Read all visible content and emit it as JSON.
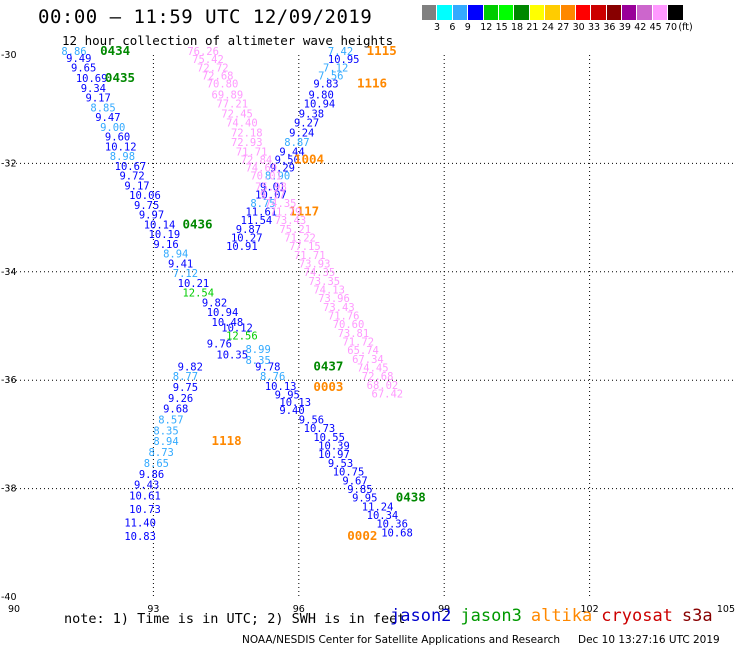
{
  "header": {
    "title": "00:00 – 11:59 UTC 12/09/2019",
    "subtitle": "12 hour collection of altimeter wave heights"
  },
  "colorbar": {
    "colors": [
      "#808080",
      "#00ffff",
      "#33aaff",
      "#0000ff",
      "#00cc00",
      "#00ff00",
      "#008800",
      "#ffff00",
      "#ffcc00",
      "#ff8800",
      "#ff0000",
      "#cc0000",
      "#880000",
      "#990099",
      "#cc66cc",
      "#ff99ff",
      "#000000"
    ],
    "ticks": [
      "3",
      "6",
      "9",
      "12",
      "15",
      "18",
      "21",
      "24",
      "27",
      "30",
      "33",
      "36",
      "39",
      "42",
      "45",
      "70",
      "(ft)"
    ]
  },
  "footer": {
    "note": "note: 1) Time is in UTC; 2) SWH is in feet",
    "legend": [
      {
        "name": "jason2",
        "color": "#0000cc"
      },
      {
        "name": "jason3",
        "color": "#009900"
      },
      {
        "name": "altika",
        "color": "#ff8800"
      },
      {
        "name": "cryosat",
        "color": "#cc0000"
      },
      {
        "name": "s3a",
        "color": "#880000"
      }
    ],
    "credit": "NOAA/NESDIS Center for Satellite Applications and Research",
    "stamp": "Dec 10 13:27:16 UTC 2019"
  },
  "chart_data": {
    "type": "scatter",
    "title": "00:00 – 11:59 UTC 12/09/2019",
    "subtitle": "12 hour collection of altimeter wave heights",
    "x_ticks": [
      "90",
      "93",
      "96",
      "99",
      "102",
      "105"
    ],
    "y_ticks": [
      "-30",
      "-32",
      "-34",
      "-36",
      "-38",
      "-40"
    ],
    "xlim": [
      90,
      105
    ],
    "ylim": [
      -40,
      -30
    ],
    "grid": true,
    "units": "ft",
    "labels": [
      {
        "x": 91.1,
        "y": -30.0,
        "text": "8.86",
        "color": "#33aaff"
      },
      {
        "x": 91.9,
        "y": -30.0,
        "text": "0434",
        "color": "#008800",
        "bold": true
      },
      {
        "x": 91.2,
        "y": -30.13,
        "text": "9.49",
        "color": "#0000ff"
      },
      {
        "x": 91.3,
        "y": -30.3,
        "text": "9.65",
        "color": "#0000ff"
      },
      {
        "x": 91.4,
        "y": -30.5,
        "text": "10.69",
        "color": "#0000ff"
      },
      {
        "x": 92.0,
        "y": -30.5,
        "text": "0435",
        "color": "#008800",
        "bold": true
      },
      {
        "x": 91.5,
        "y": -30.68,
        "text": "9.34",
        "color": "#0000ff"
      },
      {
        "x": 91.6,
        "y": -30.86,
        "text": "9.17",
        "color": "#0000ff"
      },
      {
        "x": 91.7,
        "y": -31.04,
        "text": "8.85",
        "color": "#33aaff"
      },
      {
        "x": 91.8,
        "y": -31.22,
        "text": "9.47",
        "color": "#0000ff"
      },
      {
        "x": 91.9,
        "y": -31.4,
        "text": "9.00",
        "color": "#33aaff"
      },
      {
        "x": 92.0,
        "y": -31.58,
        "text": "9.60",
        "color": "#0000ff"
      },
      {
        "x": 92.0,
        "y": -31.76,
        "text": "10.12",
        "color": "#0000ff"
      },
      {
        "x": 92.1,
        "y": -31.94,
        "text": "8.98",
        "color": "#33aaff"
      },
      {
        "x": 92.2,
        "y": -32.12,
        "text": "10.67",
        "color": "#0000ff"
      },
      {
        "x": 92.3,
        "y": -32.3,
        "text": "9.72",
        "color": "#0000ff"
      },
      {
        "x": 92.4,
        "y": -32.48,
        "text": "9.17",
        "color": "#0000ff"
      },
      {
        "x": 92.5,
        "y": -32.66,
        "text": "10.06",
        "color": "#0000ff"
      },
      {
        "x": 92.6,
        "y": -32.84,
        "text": "9.75",
        "color": "#0000ff"
      },
      {
        "x": 92.7,
        "y": -33.02,
        "text": "9.97",
        "color": "#0000ff"
      },
      {
        "x": 92.8,
        "y": -33.2,
        "text": "10.14",
        "color": "#0000ff"
      },
      {
        "x": 93.6,
        "y": -33.2,
        "text": "0436",
        "color": "#008800",
        "bold": true
      },
      {
        "x": 92.9,
        "y": -33.38,
        "text": "10.19",
        "color": "#0000ff"
      },
      {
        "x": 93.0,
        "y": -33.56,
        "text": "9.16",
        "color": "#0000ff"
      },
      {
        "x": 93.2,
        "y": -33.74,
        "text": "8.94",
        "color": "#33aaff"
      },
      {
        "x": 93.3,
        "y": -33.92,
        "text": "9.41",
        "color": "#0000ff"
      },
      {
        "x": 93.4,
        "y": -34.1,
        "text": "7.12",
        "color": "#33aaff"
      },
      {
        "x": 93.5,
        "y": -34.28,
        "text": "10.21",
        "color": "#0000ff"
      },
      {
        "x": 93.6,
        "y": -34.46,
        "text": "12.54",
        "color": "#00cc00"
      },
      {
        "x": 94.0,
        "y": -34.64,
        "text": "9.82",
        "color": "#0000ff"
      },
      {
        "x": 94.1,
        "y": -34.82,
        "text": "10.94",
        "color": "#0000ff"
      },
      {
        "x": 94.2,
        "y": -35.0,
        "text": "10.48",
        "color": "#0000ff"
      },
      {
        "x": 94.4,
        "y": -35.1,
        "text": "10.12",
        "color": "#0000ff"
      },
      {
        "x": 94.5,
        "y": -35.25,
        "text": "12.56",
        "color": "#00cc00"
      },
      {
        "x": 94.1,
        "y": -35.4,
        "text": "9.76",
        "color": "#0000ff"
      },
      {
        "x": 94.9,
        "y": -35.5,
        "text": "8.99",
        "color": "#33aaff"
      },
      {
        "x": 94.3,
        "y": -35.6,
        "text": "10.35",
        "color": "#0000ff"
      },
      {
        "x": 94.9,
        "y": -35.7,
        "text": "8.35",
        "color": "#33aaff"
      },
      {
        "x": 93.5,
        "y": -35.82,
        "text": "9.82",
        "color": "#0000ff"
      },
      {
        "x": 95.1,
        "y": -35.82,
        "text": "9.78",
        "color": "#0000ff"
      },
      {
        "x": 96.3,
        "y": -35.82,
        "text": "0437",
        "color": "#008800",
        "bold": true
      },
      {
        "x": 93.4,
        "y": -36.0,
        "text": "8.77",
        "color": "#33aaff"
      },
      {
        "x": 95.2,
        "y": -36.0,
        "text": "8.76",
        "color": "#33aaff"
      },
      {
        "x": 95.3,
        "y": -36.18,
        "text": "10.13",
        "color": "#0000ff"
      },
      {
        "x": 93.4,
        "y": -36.2,
        "text": "9.75",
        "color": "#0000ff"
      },
      {
        "x": 96.3,
        "y": -36.2,
        "text": "0003",
        "color": "#ff8800",
        "bold": true
      },
      {
        "x": 95.5,
        "y": -36.34,
        "text": "9.95",
        "color": "#0000ff"
      },
      {
        "x": 93.3,
        "y": -36.4,
        "text": "9.26",
        "color": "#0000ff"
      },
      {
        "x": 95.6,
        "y": -36.48,
        "text": "10.13",
        "color": "#0000ff"
      },
      {
        "x": 93.2,
        "y": -36.6,
        "text": "9.68",
        "color": "#0000ff"
      },
      {
        "x": 95.6,
        "y": -36.62,
        "text": "9.40",
        "color": "#0000ff"
      },
      {
        "x": 93.1,
        "y": -36.8,
        "text": "8.57",
        "color": "#33aaff"
      },
      {
        "x": 96.0,
        "y": -36.8,
        "text": "9.56",
        "color": "#0000ff"
      },
      {
        "x": 96.1,
        "y": -36.96,
        "text": "10.73",
        "color": "#0000ff"
      },
      {
        "x": 93.0,
        "y": -37.0,
        "text": "8.35",
        "color": "#33aaff"
      },
      {
        "x": 96.3,
        "y": -37.12,
        "text": "10.55",
        "color": "#0000ff"
      },
      {
        "x": 93.0,
        "y": -37.2,
        "text": "8.94",
        "color": "#33aaff"
      },
      {
        "x": 94.2,
        "y": -37.2,
        "text": "1118",
        "color": "#ff8800",
        "bold": true
      },
      {
        "x": 96.4,
        "y": -37.28,
        "text": "10.39",
        "color": "#0000ff"
      },
      {
        "x": 92.9,
        "y": -37.4,
        "text": "8.73",
        "color": "#33aaff"
      },
      {
        "x": 96.4,
        "y": -37.44,
        "text": "10.97",
        "color": "#0000ff"
      },
      {
        "x": 96.6,
        "y": -37.6,
        "text": "9.53",
        "color": "#0000ff"
      },
      {
        "x": 92.8,
        "y": -37.6,
        "text": "8.65",
        "color": "#33aaff"
      },
      {
        "x": 96.7,
        "y": -37.76,
        "text": "10.75",
        "color": "#0000ff"
      },
      {
        "x": 92.7,
        "y": -37.8,
        "text": "9.86",
        "color": "#0000ff"
      },
      {
        "x": 96.9,
        "y": -37.92,
        "text": "9.67",
        "color": "#0000ff"
      },
      {
        "x": 92.6,
        "y": -38.0,
        "text": "9.43",
        "color": "#0000ff"
      },
      {
        "x": 97.0,
        "y": -38.08,
        "text": "9.85",
        "color": "#0000ff"
      },
      {
        "x": 92.5,
        "y": -38.2,
        "text": "10.61",
        "color": "#0000ff"
      },
      {
        "x": 97.1,
        "y": -38.24,
        "text": "9.95",
        "color": "#0000ff"
      },
      {
        "x": 98.0,
        "y": -38.24,
        "text": "0438",
        "color": "#008800",
        "bold": true
      },
      {
        "x": 97.3,
        "y": -38.4,
        "text": "11.24",
        "color": "#0000ff"
      },
      {
        "x": 92.5,
        "y": -38.45,
        "text": "10.73",
        "color": "#0000ff"
      },
      {
        "x": 97.4,
        "y": -38.56,
        "text": "10.34",
        "color": "#0000ff"
      },
      {
        "x": 92.4,
        "y": -38.7,
        "text": "11.40",
        "color": "#0000ff"
      },
      {
        "x": 97.6,
        "y": -38.72,
        "text": "10.36",
        "color": "#0000ff"
      },
      {
        "x": 97.7,
        "y": -38.88,
        "text": "10.68",
        "color": "#0000ff"
      },
      {
        "x": 92.4,
        "y": -38.95,
        "text": "10.83",
        "color": "#0000ff"
      },
      {
        "x": 97.0,
        "y": -38.95,
        "text": "0002",
        "color": "#ff8800",
        "bold": true
      },
      {
        "x": 96.6,
        "y": -30.0,
        "text": "7.42",
        "color": "#33aaff"
      },
      {
        "x": 97.4,
        "y": -30.0,
        "text": "1115",
        "color": "#ff8800",
        "bold": true
      },
      {
        "x": 96.6,
        "y": -30.15,
        "text": "10.95",
        "color": "#0000ff"
      },
      {
        "x": 96.5,
        "y": -30.3,
        "text": "7.12",
        "color": "#33aaff"
      },
      {
        "x": 96.4,
        "y": -30.45,
        "text": "7.56",
        "color": "#33aaff"
      },
      {
        "x": 96.3,
        "y": -30.6,
        "text": "9.83",
        "color": "#0000ff"
      },
      {
        "x": 97.2,
        "y": -30.6,
        "text": "1116",
        "color": "#ff8800",
        "bold": true
      },
      {
        "x": 96.2,
        "y": -30.8,
        "text": "9.80",
        "color": "#0000ff"
      },
      {
        "x": 96.1,
        "y": -30.97,
        "text": "10.94",
        "color": "#0000ff"
      },
      {
        "x": 96.0,
        "y": -31.15,
        "text": "9.38",
        "color": "#0000ff"
      },
      {
        "x": 95.9,
        "y": -31.32,
        "text": "9.27",
        "color": "#0000ff"
      },
      {
        "x": 95.8,
        "y": -31.5,
        "text": "9.24",
        "color": "#0000ff"
      },
      {
        "x": 95.7,
        "y": -31.68,
        "text": "8.87",
        "color": "#33aaff"
      },
      {
        "x": 95.6,
        "y": -31.85,
        "text": "9.44",
        "color": "#0000ff"
      },
      {
        "x": 95.5,
        "y": -32.0,
        "text": "9.50",
        "color": "#0000ff"
      },
      {
        "x": 95.9,
        "y": -32.0,
        "text": "1004",
        "color": "#ff8800",
        "bold": true
      },
      {
        "x": 95.4,
        "y": -32.15,
        "text": "9.29",
        "color": "#0000ff"
      },
      {
        "x": 95.3,
        "y": -32.3,
        "text": "8.90",
        "color": "#33aaff"
      },
      {
        "x": 95.2,
        "y": -32.5,
        "text": "9.01",
        "color": "#0000ff"
      },
      {
        "x": 95.1,
        "y": -32.65,
        "text": "10.07",
        "color": "#0000ff"
      },
      {
        "x": 95.0,
        "y": -32.8,
        "text": "8.75",
        "color": "#33aaff"
      },
      {
        "x": 94.9,
        "y": -32.96,
        "text": "11.61",
        "color": "#0000ff"
      },
      {
        "x": 95.8,
        "y": -32.96,
        "text": "1117",
        "color": "#ff8800",
        "bold": true
      },
      {
        "x": 94.8,
        "y": -33.12,
        "text": "11.54",
        "color": "#0000ff"
      },
      {
        "x": 94.7,
        "y": -33.28,
        "text": "9.87",
        "color": "#0000ff"
      },
      {
        "x": 94.6,
        "y": -33.44,
        "text": "10.27",
        "color": "#0000ff"
      },
      {
        "x": 94.5,
        "y": -33.6,
        "text": "10.91",
        "color": "#0000ff"
      },
      {
        "x": 93.7,
        "y": -30.0,
        "text": "76.26",
        "color": "#ff99ff"
      },
      {
        "x": 93.8,
        "y": -30.15,
        "text": "75.42",
        "color": "#ff99ff"
      },
      {
        "x": 93.9,
        "y": -30.3,
        "text": "72.72",
        "color": "#ff99ff"
      },
      {
        "x": 94.0,
        "y": -30.45,
        "text": "72.68",
        "color": "#ff99ff"
      },
      {
        "x": 94.1,
        "y": -30.6,
        "text": "70.80",
        "color": "#ff99ff"
      },
      {
        "x": 94.2,
        "y": -30.8,
        "text": "69.89",
        "color": "#ff99ff"
      },
      {
        "x": 94.3,
        "y": -30.97,
        "text": "77.21",
        "color": "#ff99ff"
      },
      {
        "x": 94.4,
        "y": -31.15,
        "text": "72.45",
        "color": "#ff99ff"
      },
      {
        "x": 94.5,
        "y": -31.32,
        "text": "74.40",
        "color": "#ff99ff"
      },
      {
        "x": 94.6,
        "y": -31.5,
        "text": "72.18",
        "color": "#ff99ff"
      },
      {
        "x": 94.6,
        "y": -31.68,
        "text": "72.93",
        "color": "#ff99ff"
      },
      {
        "x": 94.7,
        "y": -31.85,
        "text": "71.71",
        "color": "#ff99ff"
      },
      {
        "x": 94.8,
        "y": -32.0,
        "text": "72.84",
        "color": "#ff99ff"
      },
      {
        "x": 94.9,
        "y": -32.15,
        "text": "74.60",
        "color": "#ff99ff"
      },
      {
        "x": 95.0,
        "y": -32.3,
        "text": "70.01",
        "color": "#ff99ff"
      },
      {
        "x": 95.1,
        "y": -32.5,
        "text": "75.98",
        "color": "#ff99ff"
      },
      {
        "x": 95.2,
        "y": -32.65,
        "text": "9.17",
        "color": "#ff99ff"
      },
      {
        "x": 95.3,
        "y": -32.8,
        "text": "74.35",
        "color": "#ff99ff"
      },
      {
        "x": 95.4,
        "y": -32.96,
        "text": "71.79",
        "color": "#ff99ff"
      },
      {
        "x": 95.5,
        "y": -33.12,
        "text": "73.43",
        "color": "#ff99ff"
      },
      {
        "x": 95.6,
        "y": -33.28,
        "text": "75.21",
        "color": "#ff99ff"
      },
      {
        "x": 95.7,
        "y": -33.44,
        "text": "71.22",
        "color": "#ff99ff"
      },
      {
        "x": 95.8,
        "y": -33.6,
        "text": "77.15",
        "color": "#ff99ff"
      },
      {
        "x": 95.9,
        "y": -33.76,
        "text": "71.71",
        "color": "#ff99ff"
      },
      {
        "x": 96.0,
        "y": -33.92,
        "text": "73.93",
        "color": "#ff99ff"
      },
      {
        "x": 96.1,
        "y": -34.08,
        "text": "74.35",
        "color": "#ff99ff"
      },
      {
        "x": 96.2,
        "y": -34.24,
        "text": "73.35",
        "color": "#ff99ff"
      },
      {
        "x": 96.3,
        "y": -34.4,
        "text": "74.13",
        "color": "#ff99ff"
      },
      {
        "x": 96.4,
        "y": -34.56,
        "text": "73.96",
        "color": "#ff99ff"
      },
      {
        "x": 96.5,
        "y": -34.72,
        "text": "73.43",
        "color": "#ff99ff"
      },
      {
        "x": 96.6,
        "y": -34.88,
        "text": "71.76",
        "color": "#ff99ff"
      },
      {
        "x": 96.7,
        "y": -35.04,
        "text": "70.60",
        "color": "#ff99ff"
      },
      {
        "x": 96.8,
        "y": -35.2,
        "text": "73.81",
        "color": "#ff99ff"
      },
      {
        "x": 96.9,
        "y": -35.36,
        "text": "71.72",
        "color": "#ff99ff"
      },
      {
        "x": 97.0,
        "y": -35.52,
        "text": "65.74",
        "color": "#ff99ff"
      },
      {
        "x": 97.1,
        "y": -35.68,
        "text": "67.34",
        "color": "#ff99ff"
      },
      {
        "x": 97.2,
        "y": -35.84,
        "text": "74.45",
        "color": "#ff99ff"
      },
      {
        "x": 97.3,
        "y": -36.0,
        "text": "72.68",
        "color": "#ff99ff"
      },
      {
        "x": 97.4,
        "y": -36.16,
        "text": "68.02",
        "color": "#ff99ff"
      },
      {
        "x": 97.5,
        "y": -36.32,
        "text": "67.42",
        "color": "#ff99ff"
      }
    ]
  }
}
